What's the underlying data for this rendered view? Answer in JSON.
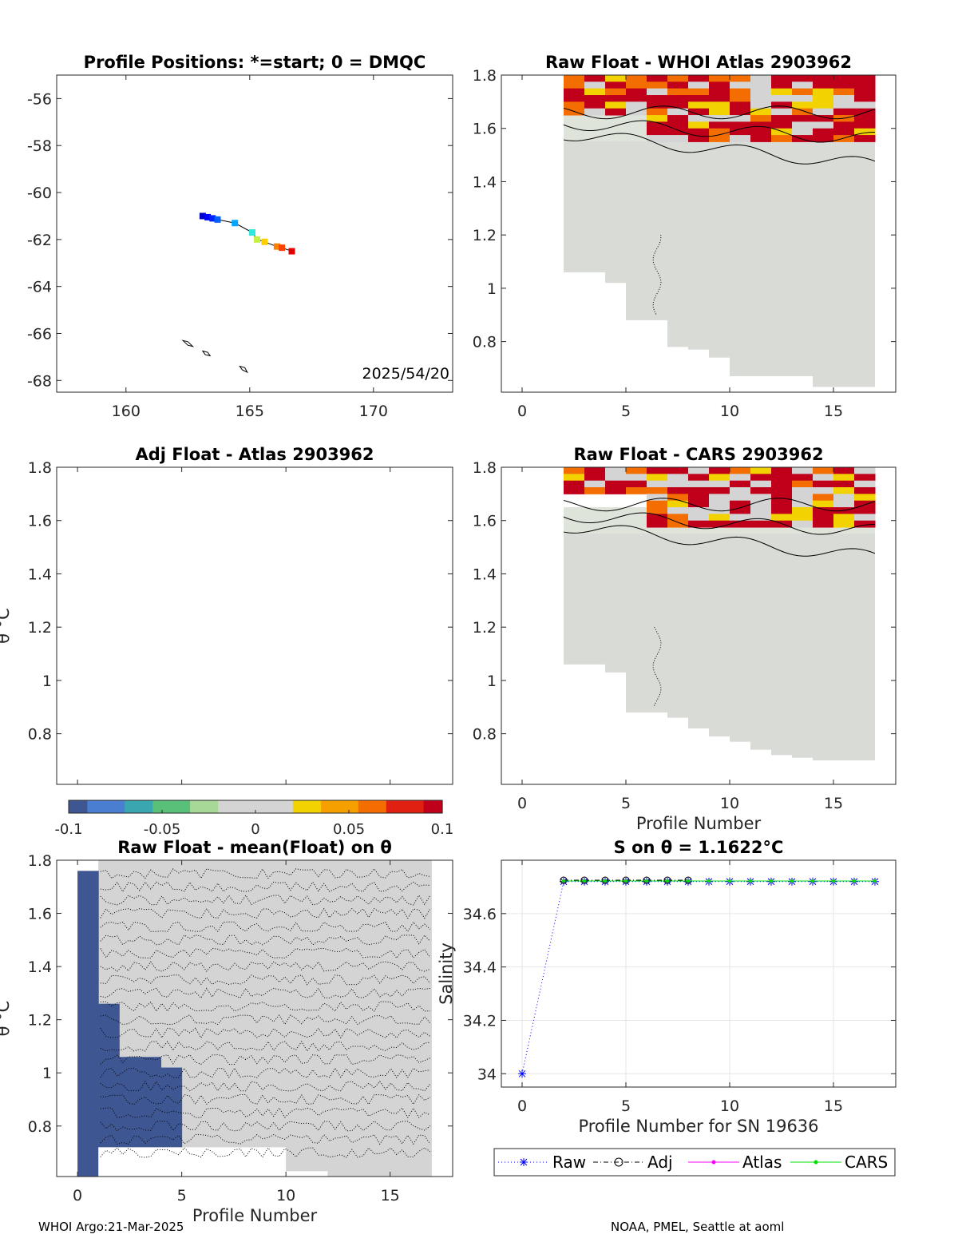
{
  "colors": {
    "anomaly_red": "#c0001a",
    "anomaly_orange": "#f46d00",
    "anomaly_yellow": "#f2d200",
    "neutral_gray": "#d4d4d4",
    "pale_green": "#dfe4da",
    "dark_blue": "#3e5691",
    "raw_line": "#0000ff",
    "adj_line": "#000000",
    "atlas_line": "#ff00ff",
    "cars_line": "#00e000"
  },
  "chart_data": [
    {
      "id": "positions",
      "type": "scatter",
      "title": "Profile Positions: *=start; 0 = DMQC",
      "x_ticks": [
        "160",
        "165",
        "170"
      ],
      "x_tick_values": [
        160,
        165,
        170
      ],
      "y_ticks": [
        "-56",
        "-58",
        "-60",
        "-62",
        "-64",
        "-66",
        "-68"
      ],
      "y_tick_values": [
        -56,
        -58,
        -60,
        -62,
        -64,
        -66,
        -68
      ],
      "xlim": [
        157.2,
        173.2
      ],
      "ylim": [
        -68.5,
        -55
      ],
      "track": {
        "lon": [
          163.1,
          163.3,
          163.5,
          163.7,
          164.4,
          165.1,
          165.3,
          165.6,
          166.1,
          166.3,
          166.7
        ],
        "lat": [
          -61.0,
          -61.05,
          -61.1,
          -61.15,
          -61.3,
          -61.7,
          -62.0,
          -62.1,
          -62.3,
          -62.35,
          -62.5
        ],
        "colors": [
          "#0000c8",
          "#0000ff",
          "#0020ff",
          "#0060ff",
          "#00a8ff",
          "#30e8e0",
          "#c8f040",
          "#ffd000",
          "#ff8000",
          "#ff4000",
          "#e00000"
        ]
      },
      "coastlines": [
        {
          "lon": [
            162.3,
            162.5,
            162.7,
            162.5,
            162.3
          ],
          "lat": [
            -66.3,
            -66.35,
            -66.55,
            -66.5,
            -66.3
          ]
        },
        {
          "lon": [
            163.1,
            163.3,
            163.4,
            163.2,
            163.1
          ],
          "lat": [
            -66.75,
            -66.8,
            -66.95,
            -66.9,
            -66.75
          ]
        },
        {
          "lon": [
            164.6,
            164.8,
            164.9,
            164.7,
            164.6
          ],
          "lat": [
            -67.4,
            -67.45,
            -67.65,
            -67.55,
            -67.4
          ]
        }
      ],
      "annotation": "2025/54/20"
    },
    {
      "id": "raw_whoi",
      "type": "heatmap",
      "title": "Raw Float - WHOI Atlas  2903962",
      "x_ticks": [
        "0",
        "5",
        "10",
        "15"
      ],
      "x_tick_values": [
        0,
        5,
        10,
        15
      ],
      "y_ticks": [
        "1.8",
        "1.6",
        "1.4",
        "1.2",
        "1",
        "0.8"
      ],
      "y_tick_values": [
        1.8,
        1.6,
        1.4,
        1.2,
        1,
        0.8
      ],
      "xlim": [
        -1,
        18
      ],
      "ylim": [
        0.61,
        1.8
      ],
      "bottom_edges": [
        [
          2,
          1.06
        ],
        [
          3,
          1.06
        ],
        [
          4,
          1.02
        ],
        [
          5,
          0.88
        ],
        [
          6,
          0.88
        ],
        [
          7,
          0.78
        ],
        [
          8,
          0.77
        ],
        [
          9,
          0.74
        ],
        [
          10,
          0.67
        ],
        [
          11,
          0.67
        ],
        [
          12,
          0.67
        ],
        [
          13,
          0.67
        ],
        [
          14,
          0.63
        ],
        [
          15,
          0.63
        ],
        [
          16,
          0.63
        ]
      ],
      "warm_start": 1.53,
      "ylabel": ""
    },
    {
      "id": "adj_atlas",
      "type": "heatmap",
      "title": "Adj Float - Atlas  2903962",
      "x_ticks": [],
      "y_ticks": [
        "1.8",
        "1.6",
        "1.4",
        "1.2",
        "1",
        "0.8"
      ],
      "y_tick_values": [
        1.8,
        1.6,
        1.4,
        1.2,
        1,
        0.8
      ],
      "xlim": [
        -1,
        18
      ],
      "ylim": [
        0.61,
        1.8
      ],
      "ylabel": "θ °C"
    },
    {
      "id": "raw_cars",
      "type": "heatmap",
      "title": "Raw Float - CARS  2903962",
      "x_ticks": [
        "0",
        "5",
        "10",
        "15"
      ],
      "x_tick_values": [
        0,
        5,
        10,
        15
      ],
      "y_ticks": [
        "1.8",
        "1.6",
        "1.4",
        "1.2",
        "1",
        "0.8"
      ],
      "y_tick_values": [
        1.8,
        1.6,
        1.4,
        1.2,
        1,
        0.8
      ],
      "xlim": [
        -1,
        18
      ],
      "ylim": [
        0.61,
        1.8
      ],
      "bottom_edges": [
        [
          2,
          1.06
        ],
        [
          3,
          1.06
        ],
        [
          4,
          1.03
        ],
        [
          5,
          0.88
        ],
        [
          6,
          0.88
        ],
        [
          7,
          0.86
        ],
        [
          8,
          0.82
        ],
        [
          9,
          0.79
        ],
        [
          10,
          0.77
        ],
        [
          11,
          0.74
        ],
        [
          12,
          0.72
        ],
        [
          13,
          0.71
        ],
        [
          14,
          0.7
        ],
        [
          15,
          0.7
        ],
        [
          16,
          0.7
        ]
      ],
      "warm_start": 1.57,
      "xlabel": "Profile Number"
    },
    {
      "id": "colorbar",
      "type": "colorbar",
      "ticks": [
        "-0.1",
        "-0.05",
        "0",
        "0.05",
        "0.1"
      ],
      "tick_values": [
        -0.1,
        -0.05,
        0,
        0.05,
        0.1
      ],
      "range": [
        -0.1,
        0.1
      ]
    },
    {
      "id": "raw_mean",
      "type": "heatmap",
      "title": "Raw Float - mean(Float) on θ",
      "x_ticks": [
        "0",
        "5",
        "10",
        "15"
      ],
      "x_tick_values": [
        0,
        5,
        10,
        15
      ],
      "y_ticks": [
        "1.8",
        "1.6",
        "1.4",
        "1.2",
        "1",
        "0.8"
      ],
      "y_tick_values": [
        1.8,
        1.6,
        1.4,
        1.2,
        1,
        0.8
      ],
      "xlim": [
        -1,
        18
      ],
      "ylim": [
        0.61,
        1.8
      ],
      "blue_region": [
        [
          0,
          0.61,
          1.76
        ],
        [
          1,
          0.72,
          1.26
        ],
        [
          2,
          0.72,
          1.06
        ],
        [
          3,
          0.72,
          1.06
        ],
        [
          4,
          0.72,
          1.02
        ]
      ],
      "white_gaps": [
        [
          1,
          10,
          0.61,
          0.72
        ],
        [
          10,
          12,
          0.61,
          0.63
        ]
      ],
      "xlabel": "Profile Number",
      "ylabel": "θ °C"
    },
    {
      "id": "salinity",
      "type": "line",
      "title": "S on θ = 1.1622°C",
      "x_ticks": [
        "0",
        "5",
        "10",
        "15"
      ],
      "x_tick_values": [
        0,
        5,
        10,
        15
      ],
      "y_ticks": [
        "34.6",
        "34.4",
        "34.2",
        "34"
      ],
      "y_tick_values": [
        34.6,
        34.4,
        34.2,
        34
      ],
      "xlim": [
        -1,
        18
      ],
      "ylim": [
        33.95,
        34.8
      ],
      "x": [
        0,
        2,
        3,
        4,
        5,
        6,
        7,
        8,
        9,
        10,
        11,
        12,
        13,
        14,
        15,
        16,
        17
      ],
      "series": [
        {
          "name": "Raw",
          "values": [
            34.0,
            34.72,
            34.72,
            34.72,
            34.72,
            34.72,
            34.72,
            34.72,
            34.72,
            34.72,
            34.72,
            34.72,
            34.72,
            34.72,
            34.72,
            34.72,
            34.72
          ]
        },
        {
          "name": "Adj",
          "values": [
            null,
            34.725,
            34.725,
            34.725,
            34.725,
            34.725,
            34.725,
            34.725,
            null,
            null,
            null,
            null,
            null,
            null,
            null,
            null,
            null
          ]
        },
        {
          "name": "Atlas",
          "values": [
            null,
            34.722,
            34.722,
            34.722,
            34.722,
            34.722,
            34.722,
            34.722,
            34.722,
            34.722,
            34.722,
            34.722,
            34.722,
            34.722,
            34.722,
            34.722,
            34.722
          ]
        },
        {
          "name": "CARS",
          "values": [
            null,
            34.722,
            34.722,
            34.722,
            34.722,
            34.722,
            34.722,
            34.722,
            34.722,
            34.722,
            34.722,
            34.722,
            34.722,
            34.722,
            34.722,
            34.722,
            34.722
          ]
        }
      ],
      "xlabel": "Profile Number for SN 19636",
      "ylabel": "Salinity",
      "legend": [
        "Raw",
        "Adj",
        "Atlas",
        "CARS"
      ]
    }
  ],
  "footer": {
    "left": "WHOI Argo:21-Mar-2025",
    "right": "NOAA, PMEL, Seattle at aoml"
  }
}
